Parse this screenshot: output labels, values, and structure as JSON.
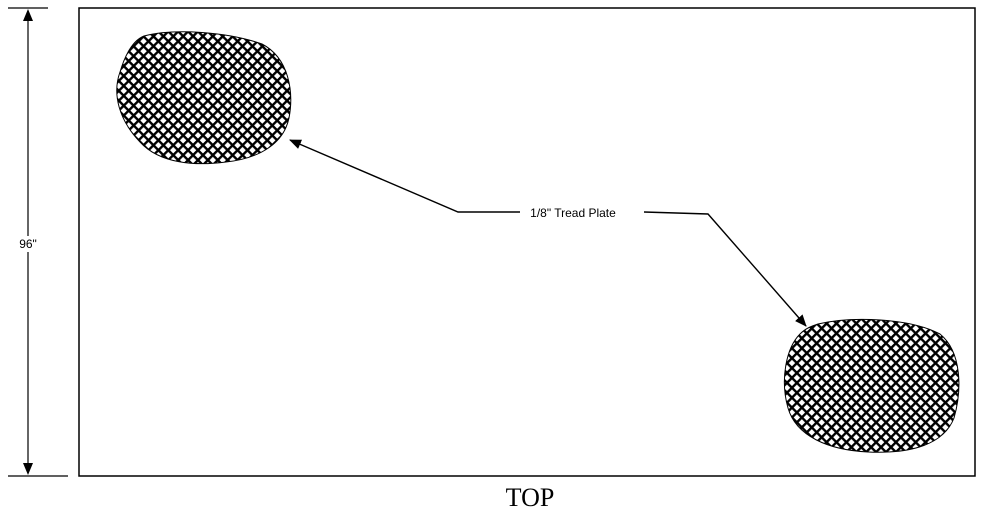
{
  "drawing": {
    "height_dimension": "96\"",
    "callout_label": "1/8\" Tread Plate",
    "view_title": "TOP"
  },
  "colors": {
    "line": "#000000",
    "background": "#ffffff",
    "tread_fill": "#000000"
  }
}
